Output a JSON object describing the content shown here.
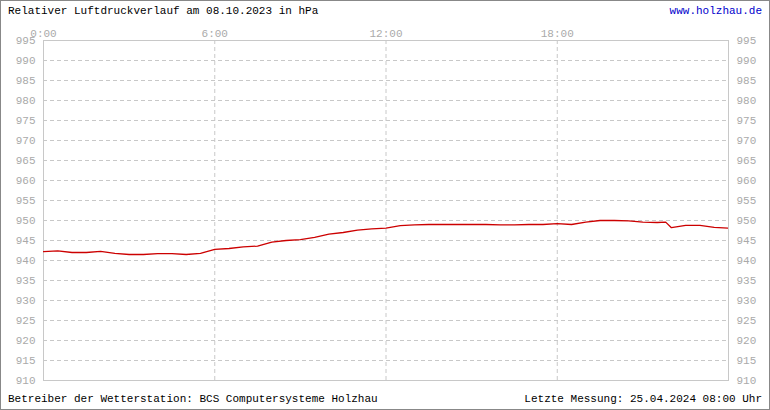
{
  "chart_data": {
    "type": "line",
    "title": "Relativer Luftdruckverlauf am 08.10.2023 in hPa",
    "annotations": [
      "www.holzhau.de",
      "Betreiber der Wetterstation: BCS Computersysteme Holzhau",
      "Letzte Messung: 25.04.2024 08:00 Uhr"
    ],
    "x": [
      0,
      0.5,
      1,
      1.5,
      2,
      2.5,
      3,
      3.5,
      4,
      4.5,
      5,
      5.5,
      6,
      6.5,
      7,
      7.5,
      8,
      8.5,
      9,
      9.5,
      10,
      10.5,
      11,
      11.5,
      12,
      12.5,
      13,
      13.5,
      14,
      14.5,
      15,
      15.5,
      16,
      16.5,
      17,
      17.5,
      18,
      18.5,
      19,
      19.5,
      20,
      20.5,
      21,
      21.5,
      21.8,
      22,
      22.5,
      23,
      23.5,
      24
    ],
    "values": [
      942.2,
      942.4,
      942.0,
      942.0,
      942.3,
      941.8,
      941.5,
      941.5,
      941.7,
      941.7,
      941.5,
      941.8,
      942.8,
      943.0,
      943.4,
      943.6,
      944.6,
      945.0,
      945.2,
      945.8,
      946.6,
      947.0,
      947.6,
      947.9,
      948.1,
      948.7,
      948.9,
      949.0,
      949.0,
      949.0,
      949.0,
      949.0,
      948.9,
      948.9,
      949.0,
      949.0,
      949.2,
      949.0,
      949.6,
      950.0,
      950.0,
      949.9,
      949.6,
      949.5,
      949.6,
      948.2,
      948.8,
      948.8,
      948.3,
      948.1
    ],
    "color": "#cc0000",
    "xlim": [
      0,
      24
    ],
    "xticks": [
      {
        "value": 0,
        "label": "0:00"
      },
      {
        "value": 6,
        "label": "6:00"
      },
      {
        "value": 12,
        "label": "12:00"
      },
      {
        "value": 18,
        "label": "18:00"
      }
    ],
    "ylim": [
      910,
      995
    ],
    "yticks": [
      910,
      915,
      920,
      925,
      930,
      935,
      940,
      945,
      950,
      955,
      960,
      965,
      970,
      975,
      980,
      985,
      990,
      995
    ],
    "grid": true
  }
}
